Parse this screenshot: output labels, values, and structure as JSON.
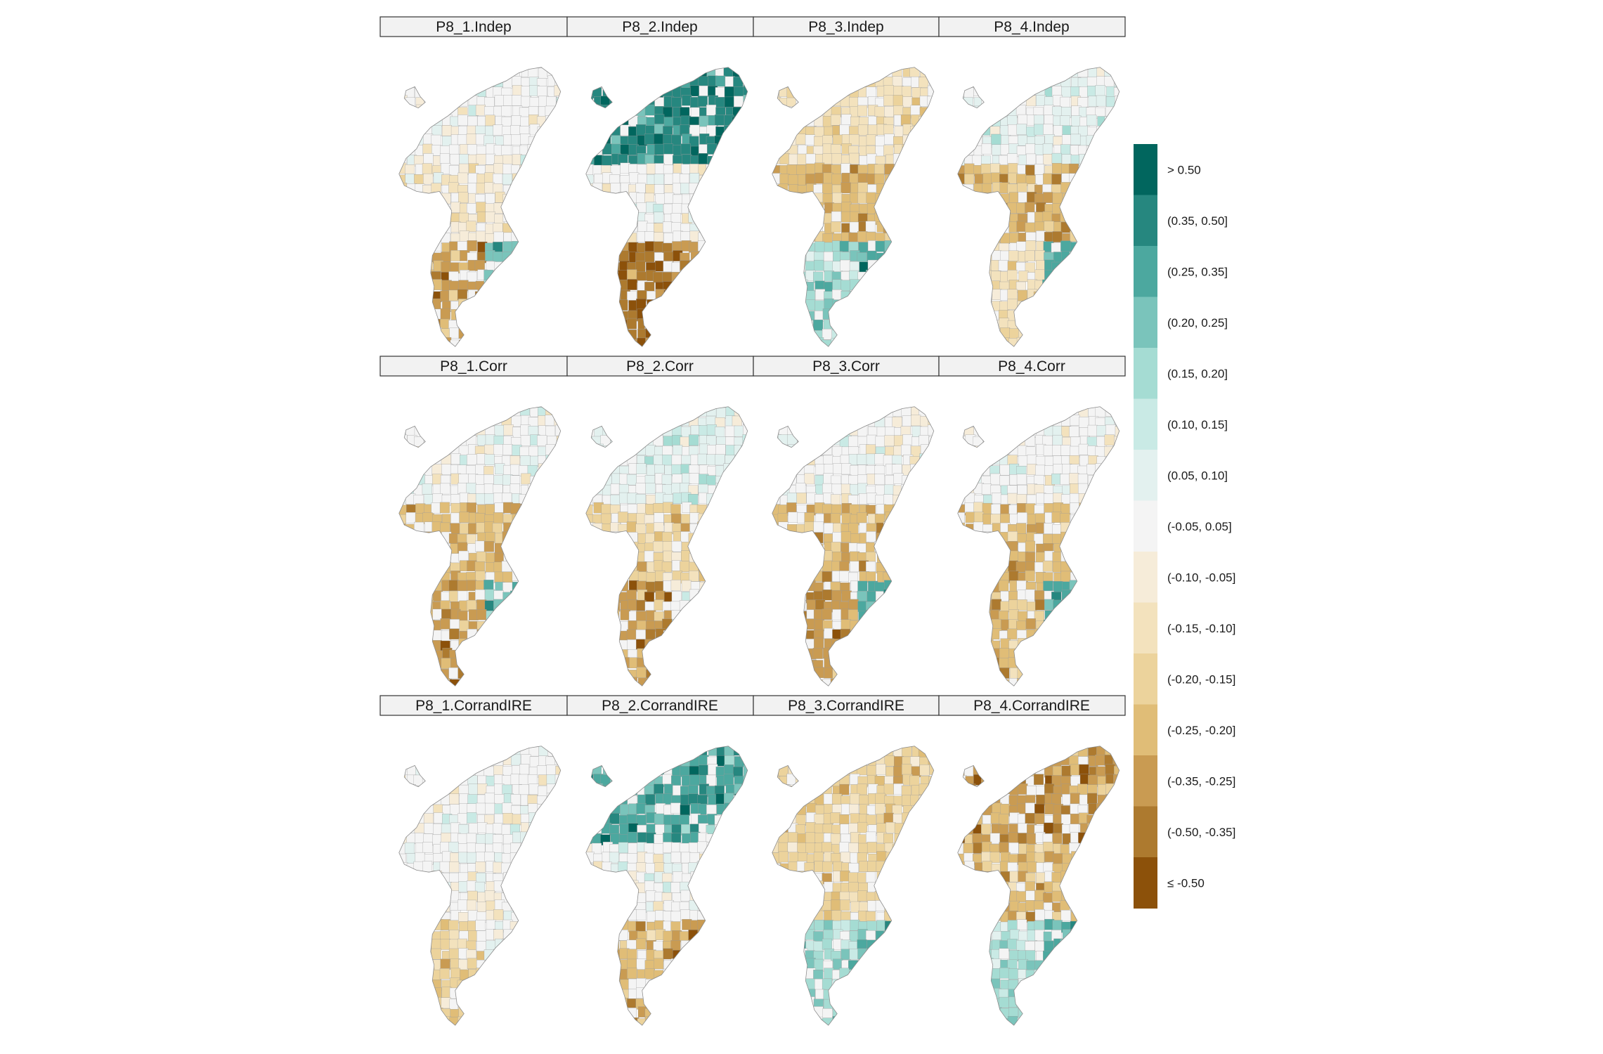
{
  "facets": [
    {
      "title": "P8_1.Indep"
    },
    {
      "title": "P8_2.Indep"
    },
    {
      "title": "P8_3.Indep"
    },
    {
      "title": "P8_4.Indep"
    },
    {
      "title": "P8_1.Corr"
    },
    {
      "title": "P8_2.Corr"
    },
    {
      "title": "P8_3.Corr"
    },
    {
      "title": "P8_4.Corr"
    },
    {
      "title": "P8_1.CorrandIRE"
    },
    {
      "title": "P8_2.CorrandIRE"
    },
    {
      "title": "P8_3.CorrandIRE"
    },
    {
      "title": "P8_4.CorrandIRE"
    }
  ],
  "legend": {
    "items": [
      {
        "label": "> 0.50",
        "color": "#01665e"
      },
      {
        "label": "(0.35, 0.50]",
        "color": "#26877f"
      },
      {
        "label": "(0.25, 0.35]",
        "color": "#4ca89f"
      },
      {
        "label": "(0.20, 0.25]",
        "color": "#7ac4bb"
      },
      {
        "label": "(0.15, 0.20]",
        "color": "#a5dcd3"
      },
      {
        "label": "(0.10, 0.15]",
        "color": "#c9eae5"
      },
      {
        "label": "(0.05, 0.10]",
        "color": "#e3f1ef"
      },
      {
        "label": "(-0.05, 0.05]",
        "color": "#f4f4f4"
      },
      {
        "label": "(-0.10, -0.05]",
        "color": "#f6ecd9"
      },
      {
        "label": "(-0.15, -0.10]",
        "color": "#f3e2bd"
      },
      {
        "label": "(-0.20, -0.15]",
        "color": "#ecd39c"
      },
      {
        "label": "(-0.25, -0.20]",
        "color": "#e0bd77"
      },
      {
        "label": "(-0.35, -0.25]",
        "color": "#c99b52"
      },
      {
        "label": "(-0.50, -0.35]",
        "color": "#ad7a2f"
      },
      {
        "label": "≤ -0.50",
        "color": "#8c510a"
      }
    ]
  }
}
